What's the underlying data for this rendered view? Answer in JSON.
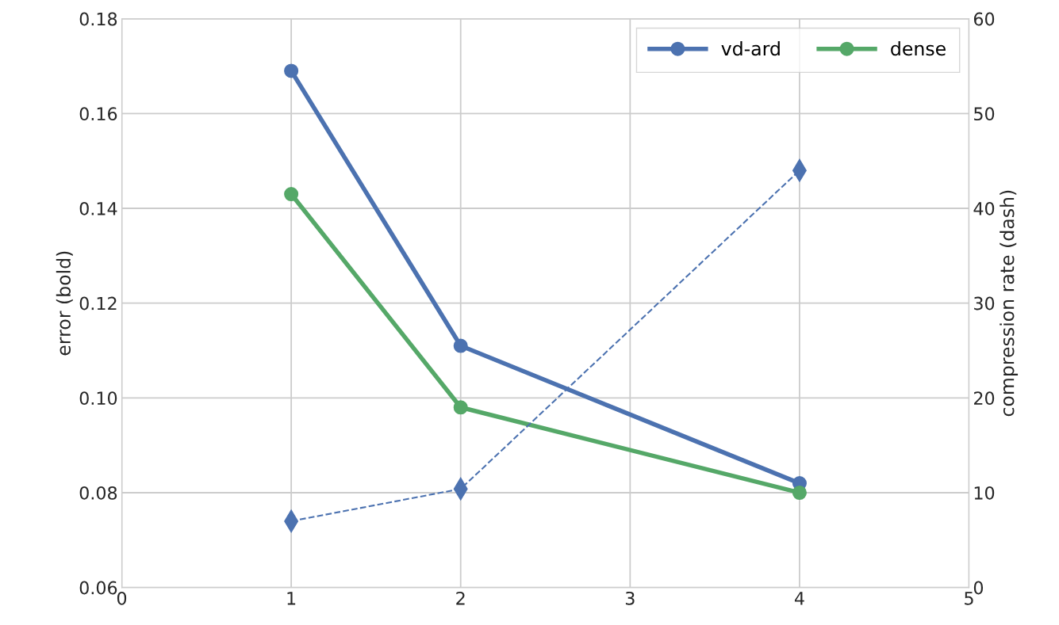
{
  "chart_data": {
    "type": "line",
    "x": [
      1,
      2,
      4
    ],
    "ylabel": "error (bold)",
    "y2label": "compression rate (dash)",
    "xlim": [
      0,
      5
    ],
    "xticks": [
      0,
      1,
      2,
      3,
      4,
      5
    ],
    "ylim": [
      0.06,
      0.18
    ],
    "yticks": [
      {
        "value": 0.06,
        "label": "0.06"
      },
      {
        "value": 0.08,
        "label": "0.08"
      },
      {
        "value": 0.1,
        "label": "0.10"
      },
      {
        "value": 0.12,
        "label": "0.12"
      },
      {
        "value": 0.14,
        "label": "0.14"
      },
      {
        "value": 0.16,
        "label": "0.16"
      },
      {
        "value": 0.18,
        "label": "0.18"
      }
    ],
    "y2lim": [
      0,
      60
    ],
    "y2ticks": [
      0,
      10,
      20,
      30,
      40,
      50,
      60
    ],
    "grid": true,
    "legend": "top right",
    "series": [
      {
        "name": "vd-ard",
        "color": "#4c72b0",
        "values": [
          0.169,
          0.111,
          0.082
        ],
        "marker": "circle",
        "line_style": "solid"
      },
      {
        "name": "dense",
        "color": "#55a868",
        "values": [
          0.143,
          0.098,
          0.08
        ],
        "marker": "circle",
        "line_style": "solid"
      },
      {
        "color": "#4c72b0",
        "values": [
          7,
          10.4,
          44
        ],
        "axis": "y2",
        "marker": "diamond",
        "line_style": "dashed"
      }
    ]
  }
}
